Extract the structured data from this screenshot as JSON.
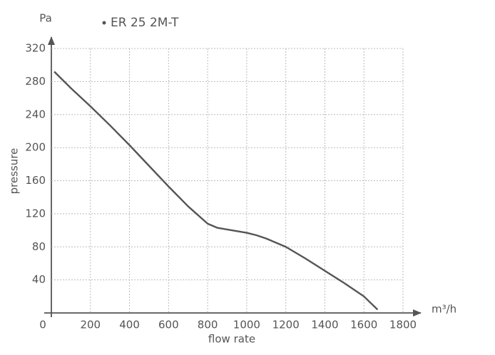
{
  "chart_data": {
    "type": "line",
    "y_unit": "Pa",
    "x_unit": "m³/h",
    "ylabel": "pressure",
    "xlabel": "flow rate",
    "x": [
      15,
      100,
      200,
      300,
      400,
      500,
      600,
      700,
      800,
      850,
      900,
      1000,
      1050,
      1100,
      1200,
      1300,
      1400,
      1500,
      1600,
      1670
    ],
    "series": [
      {
        "name": "ER 25 2M-T",
        "color": "#555555",
        "values": [
          292,
          272,
          250,
          227,
          203,
          178,
          153,
          129,
          108,
          103,
          101,
          97,
          94,
          90,
          80,
          66,
          51,
          36,
          20,
          4
        ]
      }
    ],
    "xlim": [
      0,
      1800
    ],
    "ylim": [
      0,
      320
    ],
    "xticks": [
      0,
      200,
      400,
      600,
      800,
      1000,
      1200,
      1400,
      1600,
      1800
    ],
    "yticks": [
      40,
      80,
      120,
      160,
      200,
      240,
      280,
      320
    ],
    "grid": true
  }
}
